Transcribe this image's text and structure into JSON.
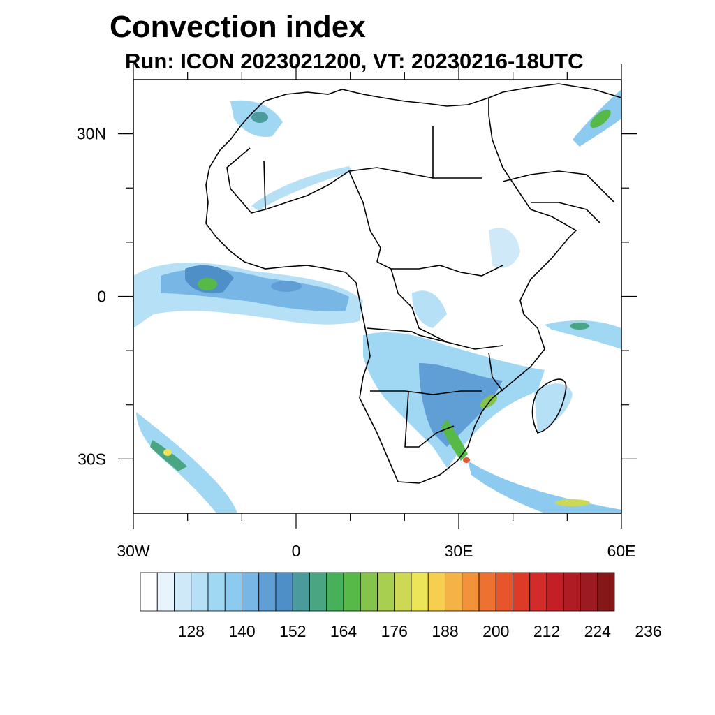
{
  "title": "Convection index",
  "subtitle": "Run: ICON 2023021200,  VT: 20230216-18UTC",
  "map": {
    "lon_range": [
      -30,
      60
    ],
    "lat_range": [
      -40,
      40
    ],
    "lat_labels": [
      {
        "lat": 30,
        "text": "30N"
      },
      {
        "lat": 0,
        "text": "0"
      },
      {
        "lat": -30,
        "text": "30S"
      }
    ],
    "lon_labels": [
      {
        "lon": -30,
        "text": "30W"
      },
      {
        "lon": 0,
        "text": "0"
      },
      {
        "lon": 30,
        "text": "30E"
      },
      {
        "lon": 60,
        "text": "60E"
      }
    ]
  },
  "colorbar": {
    "colors": [
      "#ffffff",
      "#e8f4fc",
      "#cfe9f8",
      "#b5e0f5",
      "#a0d8f4",
      "#8ccaef",
      "#78b6e6",
      "#5f9fd6",
      "#4f8fc8",
      "#4b9a9c",
      "#49a582",
      "#46b05a",
      "#57b948",
      "#85c44b",
      "#a9cf50",
      "#cdd955",
      "#ede559",
      "#f7cf50",
      "#f5b246",
      "#f2923b",
      "#ed7231",
      "#e7552a",
      "#de3a28",
      "#d32a2a",
      "#c41f27",
      "#b01c24",
      "#9c1a22",
      "#861719"
    ],
    "labels": [
      "128",
      "140",
      "152",
      "164",
      "176",
      "188",
      "200",
      "212",
      "224",
      "236"
    ]
  }
}
